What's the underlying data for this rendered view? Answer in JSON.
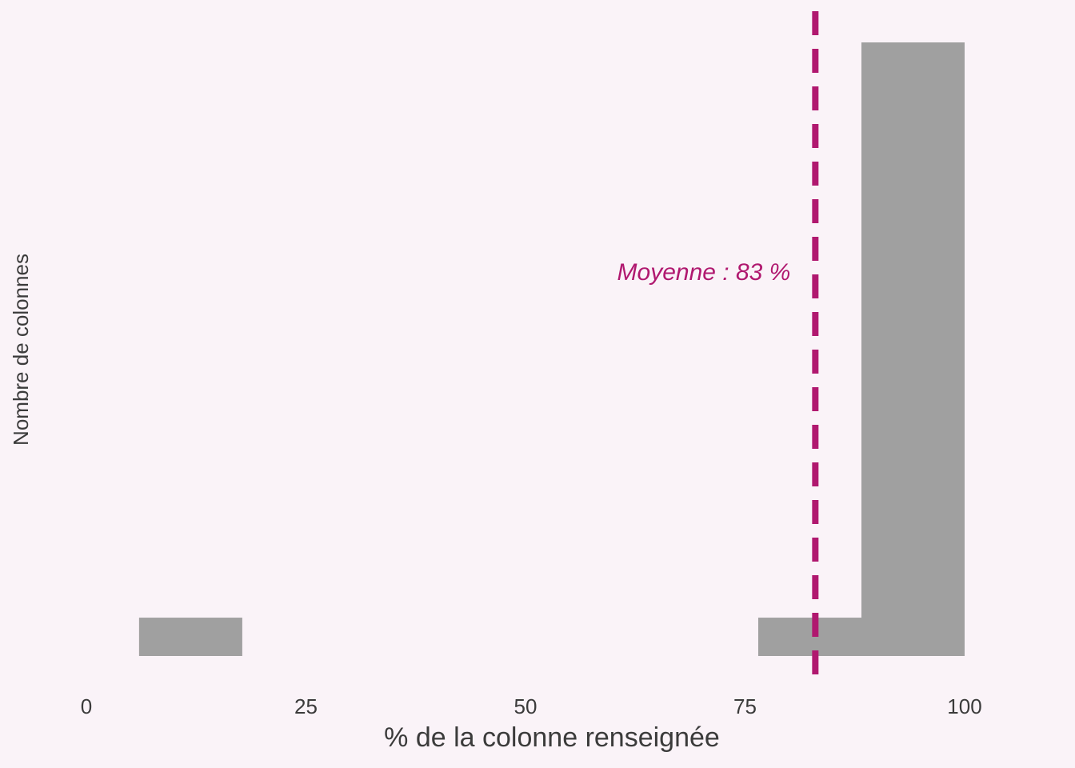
{
  "chart_data": {
    "type": "histogram",
    "x_label": "% de la colonne renseignée",
    "y_label": "Nombre de colonnes",
    "bins": [
      6,
      17.75,
      29.5,
      41.25,
      53,
      64.75,
      76.5,
      88.25,
      100
    ],
    "values": [
      1,
      0,
      0,
      0,
      0,
      0,
      1,
      16
    ],
    "color": "#a0a0a0",
    "xlim": [
      0,
      100
    ],
    "xticks": [
      0,
      25,
      50,
      75,
      100
    ],
    "ylim": [
      0,
      16
    ],
    "mean": 83,
    "mean_color": "#b0186f",
    "annotation": "Moyenne : 83 %"
  }
}
